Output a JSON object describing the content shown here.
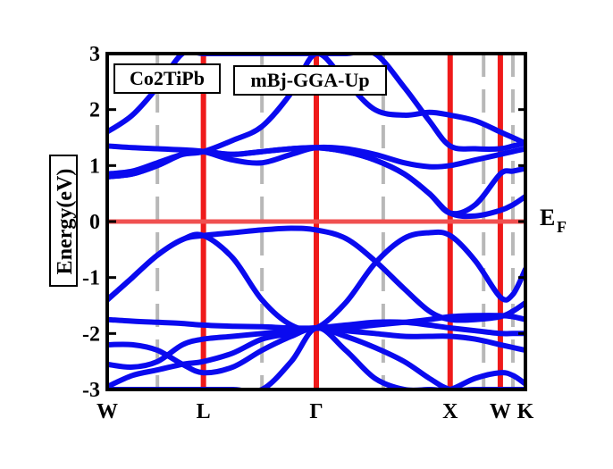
{
  "chart_data": {
    "type": "line",
    "title": "",
    "ylabel": "Energy(eV)",
    "xlabel": "",
    "ylim": [
      -3,
      3
    ],
    "yticks": [
      -3,
      -2,
      -1,
      0,
      1,
      2,
      3
    ],
    "x_range": [
      0,
      10
    ],
    "high_symmetry_points": [
      {
        "label": "W",
        "x": 0
      },
      {
        "label": "L",
        "x": 2.3
      },
      {
        "label": "Γ",
        "x": 5.0
      },
      {
        "label": "X",
        "x": 8.2
      },
      {
        "label": "W",
        "x": 9.4
      },
      {
        "label": "K",
        "x": 10
      }
    ],
    "dashed_guides_x": [
      1.2,
      3.7,
      6.6,
      9.0,
      9.7
    ],
    "fermi_level": {
      "y": 0,
      "label_main": "E",
      "label_sub": "F"
    },
    "legend": {
      "compound": "Co2TiPb",
      "method": "mBj-GGA-Up"
    },
    "colors": {
      "bands": "#0a0aef",
      "symmetry_lines": "#ef1a1a",
      "fermi": "#f05050",
      "guides": "#b8b8b8"
    },
    "series": [
      {
        "x": [
          0,
          0.6,
          1.2,
          1.8,
          2.3,
          3.0,
          3.7,
          4.4,
          5.0,
          5.7,
          6.4,
          7.1,
          7.7,
          8.2,
          8.8,
          9.4,
          9.7,
          10
        ],
        "values": [
          -2.95,
          -2.75,
          -2.65,
          -2.55,
          -2.5,
          -2.35,
          -2.1,
          -2.0,
          -1.9,
          -1.9,
          -1.85,
          -1.8,
          -1.75,
          -1.7,
          -1.68,
          -1.68,
          -1.7,
          -1.75
        ]
      },
      {
        "x": [
          0,
          0.6,
          1.2,
          1.8,
          2.3,
          3.0,
          3.7,
          4.4,
          5.0,
          5.7,
          6.4,
          7.1,
          7.7,
          8.2,
          8.8,
          9.4,
          9.7,
          10
        ],
        "values": [
          -2.2,
          -2.2,
          -2.3,
          -2.55,
          -2.7,
          -2.6,
          -2.3,
          -2.05,
          -1.9,
          -2.05,
          -2.25,
          -2.5,
          -2.8,
          -3.0,
          -3.0,
          -3.0,
          -3.0,
          -3.0
        ]
      },
      {
        "x": [
          0,
          0.6,
          1.2,
          1.8,
          2.3,
          3.0,
          3.7,
          4.4,
          5.0,
          5.7,
          6.4,
          7.1,
          7.7,
          8.2,
          8.8,
          9.4,
          9.7,
          10
        ],
        "values": [
          -2.55,
          -2.6,
          -2.5,
          -2.2,
          -2.1,
          -2.05,
          -2.0,
          -1.95,
          -1.9,
          -1.95,
          -2.0,
          -2.05,
          -2.05,
          -2.05,
          -2.1,
          -2.2,
          -2.25,
          -2.3
        ]
      },
      {
        "x": [
          0,
          0.6,
          1.2,
          1.8,
          2.3,
          3.0,
          3.7,
          4.4,
          5.0,
          5.7,
          6.4,
          7.1,
          7.7,
          8.2,
          8.8,
          9.4,
          9.7,
          10
        ],
        "values": [
          -1.75,
          -1.78,
          -1.8,
          -1.82,
          -1.85,
          -1.87,
          -1.88,
          -1.9,
          -1.9,
          -1.85,
          -1.8,
          -1.8,
          -1.85,
          -1.9,
          -1.95,
          -2.0,
          -2.0,
          -2.0
        ]
      },
      {
        "x": [
          0,
          0.6,
          1.2,
          1.8,
          2.3,
          3.0,
          3.7,
          4.4,
          5.0,
          5.7,
          6.4,
          7.1,
          7.7,
          8.2,
          8.8,
          9.4,
          9.7,
          10
        ],
        "values": [
          -1.4,
          -1.0,
          -0.6,
          -0.32,
          -0.25,
          -0.2,
          -0.15,
          -0.12,
          -0.15,
          -0.3,
          -0.7,
          -1.2,
          -1.6,
          -1.75,
          -1.75,
          -1.7,
          -1.6,
          -1.45
        ]
      },
      {
        "x": [
          0,
          0.6,
          1.2,
          1.8,
          2.3,
          3.0,
          3.7,
          4.4,
          5.0,
          5.7,
          6.4,
          7.1,
          7.7,
          8.2,
          8.8,
          9.4,
          9.7,
          10
        ],
        "values": [
          -1.4,
          -1.0,
          -0.6,
          -0.32,
          -0.25,
          -0.65,
          -1.4,
          -1.85,
          -1.9,
          -1.45,
          -0.75,
          -0.3,
          -0.2,
          -0.25,
          -0.7,
          -1.35,
          -1.3,
          -0.85
        ]
      },
      {
        "x": [
          0,
          0.6,
          1.2,
          1.8,
          2.3,
          3.0,
          3.7,
          4.4,
          5.0,
          5.7,
          6.4,
          7.1,
          7.7,
          8.2,
          8.8,
          9.4,
          9.7,
          10
        ],
        "values": [
          -3.0,
          -3.0,
          -3.0,
          -3.0,
          -3.0,
          -3.0,
          -3.0,
          -2.5,
          -1.9,
          -2.3,
          -2.8,
          -3.0,
          -3.0,
          -3.0,
          -2.8,
          -2.7,
          -2.75,
          -2.9
        ]
      },
      {
        "x": [
          0,
          0.6,
          1.2,
          1.8,
          2.3,
          3.0,
          3.7,
          4.4,
          5.0,
          5.7,
          6.4,
          7.1,
          7.7,
          8.2,
          8.8,
          9.4,
          9.7,
          10
        ],
        "values": [
          0.8,
          0.85,
          1.0,
          1.2,
          1.25,
          1.2,
          1.25,
          1.3,
          1.32,
          1.25,
          1.1,
          0.85,
          0.5,
          0.15,
          0.3,
          0.85,
          0.9,
          0.95
        ]
      },
      {
        "x": [
          0,
          0.6,
          1.2,
          1.8,
          2.3,
          3.0,
          3.7,
          4.4,
          5.0,
          5.7,
          6.4,
          7.1,
          7.7,
          8.2,
          8.8,
          9.4,
          9.7,
          10
        ],
        "values": [
          1.35,
          1.32,
          1.3,
          1.28,
          1.25,
          1.1,
          1.05,
          1.2,
          1.32,
          1.3,
          1.2,
          1.05,
          0.98,
          1.0,
          1.1,
          1.2,
          1.25,
          1.3
        ]
      },
      {
        "x": [
          0,
          0.6,
          1.2,
          1.8,
          2.3,
          3.0,
          3.7,
          4.4,
          5.0,
          5.7,
          6.4,
          7.1,
          7.7,
          8.2,
          8.8,
          9.4,
          9.7,
          10
        ],
        "values": [
          0.85,
          0.9,
          1.05,
          1.2,
          1.25,
          1.45,
          1.7,
          2.3,
          3.0,
          2.5,
          2.0,
          1.9,
          1.95,
          1.9,
          1.8,
          1.6,
          1.5,
          1.4
        ]
      },
      {
        "x": [
          0,
          0.6,
          1.2,
          1.8,
          2.3,
          3.0,
          3.7,
          4.4,
          5.0,
          5.7,
          6.4,
          7.1,
          7.7,
          8.2,
          8.8,
          9.4,
          9.7,
          10
        ],
        "values": [
          1.6,
          1.9,
          2.4,
          3.0,
          3.0,
          3.0,
          3.0,
          3.0,
          3.0,
          3.0,
          3.0,
          2.4,
          1.8,
          1.35,
          1.3,
          1.3,
          1.35,
          1.4
        ]
      },
      {
        "x": [
          0,
          0.6,
          1.2,
          1.8,
          2.3,
          3.0,
          3.7,
          4.4,
          5.0,
          5.7,
          6.4,
          7.1,
          7.7,
          8.2,
          8.8,
          9.4,
          9.7,
          10
        ],
        "values": [
          0.8,
          0.85,
          1.0,
          1.2,
          1.25,
          1.2,
          1.25,
          1.3,
          1.32,
          1.25,
          1.1,
          0.85,
          0.5,
          0.15,
          0.1,
          0.2,
          0.3,
          0.45
        ]
      }
    ]
  }
}
